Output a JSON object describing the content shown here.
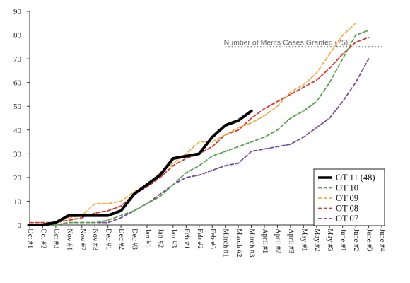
{
  "chart_data": {
    "type": "line",
    "x": [
      "Oct #1",
      "Oct #2",
      "Oct #3",
      "Nov #1",
      "Nov #2",
      "Nov #3",
      "Dec #1",
      "Dec #2",
      "Dec #3",
      "Jan #1",
      "Jan #2",
      "Jan #3",
      "Feb #1",
      "Feb #2",
      "Feb #3",
      "March #1",
      "March #2",
      "March #3",
      "April #1",
      "April #2",
      "April #3",
      "May #1",
      "May #2",
      "May #3",
      "June #1",
      "June #2",
      "June #3",
      "June #4"
    ],
    "ylim": [
      0,
      90
    ],
    "yticks": [
      0,
      10,
      20,
      30,
      40,
      50,
      60,
      70,
      80,
      90
    ],
    "grid": false,
    "legend_position": "bottom-right",
    "series": [
      {
        "name": "OT 11 (48)",
        "color": "#000000",
        "style": "solid",
        "values": [
          0,
          0,
          1,
          4,
          4,
          4,
          4,
          6,
          13,
          17,
          21,
          28,
          29,
          30,
          37,
          42,
          44,
          48,
          null,
          null,
          null,
          null,
          null,
          null,
          null,
          null,
          null,
          null
        ]
      },
      {
        "name": "OT 10",
        "color": "#5aa050",
        "style": "dashed",
        "values": [
          0,
          0,
          0,
          1,
          1,
          1,
          2,
          4,
          6,
          9,
          12,
          17,
          22,
          25,
          29,
          31,
          33,
          35,
          37,
          40,
          45,
          48,
          52,
          60,
          70,
          80,
          82,
          null
        ]
      },
      {
        "name": "OT 09",
        "color": "#f0b050",
        "style": "dashed",
        "values": [
          0,
          0,
          1,
          3,
          4,
          9,
          9,
          10,
          14,
          17,
          22,
          26,
          30,
          35,
          35,
          38,
          41,
          43,
          46,
          50,
          56,
          59,
          64,
          72,
          80,
          85,
          null,
          null
        ]
      },
      {
        "name": "OT 08",
        "color": "#d03a30",
        "style": "dashed",
        "values": [
          1,
          1,
          1,
          2,
          3,
          5,
          6,
          8,
          13,
          16,
          20,
          25,
          28,
          30,
          33,
          38,
          40,
          45,
          49,
          52,
          55,
          58,
          61,
          66,
          72,
          77,
          79,
          null
        ]
      },
      {
        "name": "OT 07",
        "color": "#7a4a9a",
        "style": "dashed",
        "values": [
          0,
          0,
          0,
          1,
          1,
          1,
          1,
          3,
          6,
          9,
          13,
          17,
          20,
          21,
          23,
          25,
          26,
          31,
          32,
          33,
          34,
          37,
          41,
          45,
          52,
          60,
          70,
          null
        ]
      }
    ],
    "reference_line": {
      "label": "Number of Merits Cases Granted (75)",
      "value": 75,
      "x_start": "March #1",
      "x_end": "June #4"
    }
  }
}
